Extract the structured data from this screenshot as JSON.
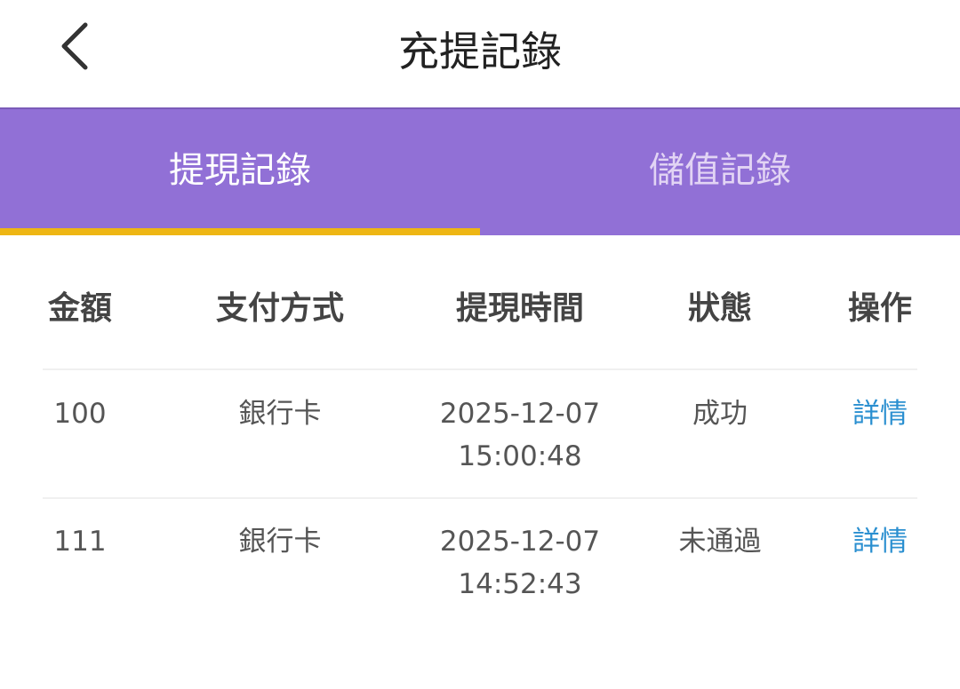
{
  "header": {
    "title": "充提記錄",
    "back_icon": "chevron-left-icon"
  },
  "tabs": [
    {
      "label": "提現記錄",
      "active": true
    },
    {
      "label": "儲值記錄",
      "active": false
    }
  ],
  "colors": {
    "tab_bar": "#9170d6",
    "indicator": "#eeb614",
    "link": "#2a8fd0"
  },
  "table": {
    "columns": [
      "金額",
      "支付方式",
      "提現時間",
      "狀態",
      "操作"
    ],
    "rows": [
      {
        "amount": "100",
        "method": "銀行卡",
        "date": "2025-12-07",
        "time": "15:00:48",
        "status": "成功",
        "action": "詳情"
      },
      {
        "amount": "111",
        "method": "銀行卡",
        "date": "2025-12-07",
        "time": "14:52:43",
        "status": "未通過",
        "action": "詳情"
      }
    ]
  }
}
